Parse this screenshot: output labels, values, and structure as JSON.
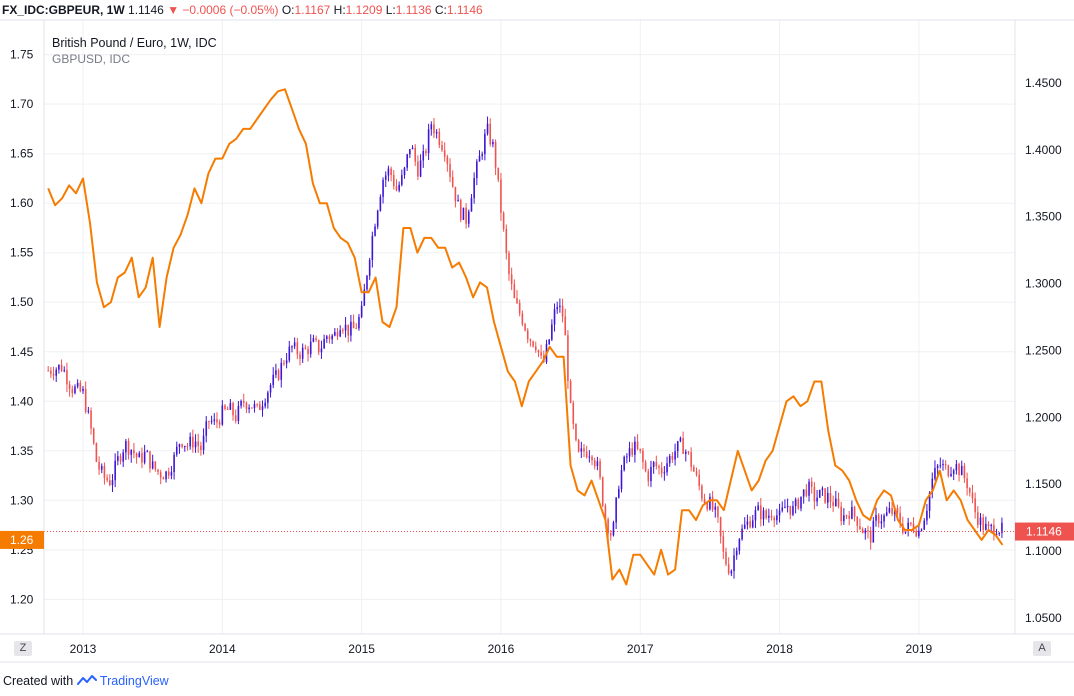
{
  "header": {
    "symbol": "FX_IDC:GBPEUR, 1W",
    "last": "1.1146",
    "change_arrow": "▼",
    "change": "−0.0006 (−0.05%)",
    "open_label": "O:",
    "open": "1.1167",
    "high_label": "H:",
    "high": "1.1209",
    "low_label": "L:",
    "low": "1.1136",
    "close_label": "C:",
    "close": "1.1146"
  },
  "legend": {
    "line1": "British Pound / Euro, 1W, IDC",
    "line2": "GBPUSD, IDC"
  },
  "footer": {
    "prefix": "Created with",
    "brand": "TradingView"
  },
  "buttons": {
    "left": "Z",
    "right": "A"
  },
  "colors": {
    "up": "#3d16d6",
    "down": "#ef5350",
    "gbpusd": "#f57c00",
    "grid": "#eef0f3",
    "price_line": "#ef5350"
  },
  "chart_data": {
    "type": "line",
    "left_axis": {
      "series": "GBPUSD",
      "ticks": [
        "1.20",
        "1.25",
        "1.30",
        "1.35",
        "1.40",
        "1.45",
        "1.50",
        "1.55",
        "1.60",
        "1.65",
        "1.70",
        "1.75"
      ],
      "ylim": [
        1.165,
        1.785
      ],
      "current_label": "1.26"
    },
    "right_axis": {
      "series": "GBPEUR",
      "ticks": [
        "1.0500",
        "1.1000",
        "1.1500",
        "1.2000",
        "1.2500",
        "1.3000",
        "1.3500",
        "1.4000",
        "1.4500"
      ],
      "ylim": [
        1.038,
        1.497
      ],
      "current_label": "1.1146"
    },
    "x_ticks": [
      "2013",
      "2014",
      "2015",
      "2016",
      "2017",
      "2018",
      "2019"
    ],
    "xlim": [
      2012.72,
      2019.69
    ],
    "series": [
      {
        "name": "GBPEUR, 1W",
        "chart_style": "candles",
        "points": [
          [
            2012.75,
            1.235
          ],
          [
            2012.85,
            1.238
          ],
          [
            2012.92,
            1.222
          ],
          [
            2013.0,
            1.218
          ],
          [
            2013.05,
            1.195
          ],
          [
            2013.1,
            1.165
          ],
          [
            2013.15,
            1.155
          ],
          [
            2013.2,
            1.152
          ],
          [
            2013.25,
            1.168
          ],
          [
            2013.3,
            1.18
          ],
          [
            2013.35,
            1.176
          ],
          [
            2013.4,
            1.168
          ],
          [
            2013.45,
            1.173
          ],
          [
            2013.5,
            1.163
          ],
          [
            2013.55,
            1.158
          ],
          [
            2013.6,
            1.158
          ],
          [
            2013.65,
            1.168
          ],
          [
            2013.7,
            1.184
          ],
          [
            2013.75,
            1.179
          ],
          [
            2013.8,
            1.183
          ],
          [
            2013.85,
            1.176
          ],
          [
            2013.9,
            1.198
          ],
          [
            2013.95,
            1.195
          ],
          [
            2014.0,
            1.203
          ],
          [
            2014.05,
            1.206
          ],
          [
            2014.1,
            1.2
          ],
          [
            2014.15,
            1.212
          ],
          [
            2014.2,
            1.21
          ],
          [
            2014.25,
            1.205
          ],
          [
            2014.3,
            1.215
          ],
          [
            2014.35,
            1.225
          ],
          [
            2014.4,
            1.232
          ],
          [
            2014.45,
            1.245
          ],
          [
            2014.5,
            1.252
          ],
          [
            2014.55,
            1.248
          ],
          [
            2014.6,
            1.25
          ],
          [
            2014.65,
            1.255
          ],
          [
            2014.7,
            1.251
          ],
          [
            2014.75,
            1.261
          ],
          [
            2014.8,
            1.26
          ],
          [
            2014.85,
            1.272
          ],
          [
            2014.9,
            1.265
          ],
          [
            2014.95,
            1.266
          ],
          [
            2015.0,
            1.278
          ],
          [
            2015.05,
            1.318
          ],
          [
            2015.1,
            1.35
          ],
          [
            2015.15,
            1.378
          ],
          [
            2015.2,
            1.385
          ],
          [
            2015.25,
            1.37
          ],
          [
            2015.3,
            1.38
          ],
          [
            2015.35,
            1.405
          ],
          [
            2015.4,
            1.385
          ],
          [
            2015.45,
            1.395
          ],
          [
            2015.5,
            1.42
          ],
          [
            2015.55,
            1.41
          ],
          [
            2015.6,
            1.4
          ],
          [
            2015.65,
            1.375
          ],
          [
            2015.7,
            1.355
          ],
          [
            2015.75,
            1.348
          ],
          [
            2015.8,
            1.375
          ],
          [
            2015.85,
            1.395
          ],
          [
            2015.9,
            1.415
          ],
          [
            2015.95,
            1.4
          ],
          [
            2016.0,
            1.355
          ],
          [
            2016.05,
            1.31
          ],
          [
            2016.1,
            1.285
          ],
          [
            2016.15,
            1.275
          ],
          [
            2016.2,
            1.26
          ],
          [
            2016.25,
            1.255
          ],
          [
            2016.3,
            1.238
          ],
          [
            2016.35,
            1.26
          ],
          [
            2016.4,
            1.285
          ],
          [
            2016.45,
            1.275
          ],
          [
            2016.5,
            1.205
          ],
          [
            2016.55,
            1.17
          ],
          [
            2016.6,
            1.175
          ],
          [
            2016.65,
            1.175
          ],
          [
            2016.7,
            1.16
          ],
          [
            2016.75,
            1.125
          ],
          [
            2016.8,
            1.11
          ],
          [
            2016.85,
            1.155
          ],
          [
            2016.9,
            1.17
          ],
          [
            2016.95,
            1.178
          ],
          [
            2017.0,
            1.172
          ],
          [
            2017.05,
            1.155
          ],
          [
            2017.1,
            1.165
          ],
          [
            2017.15,
            1.16
          ],
          [
            2017.2,
            1.168
          ],
          [
            2017.25,
            1.175
          ],
          [
            2017.3,
            1.18
          ],
          [
            2017.35,
            1.17
          ],
          [
            2017.4,
            1.155
          ],
          [
            2017.45,
            1.14
          ],
          [
            2017.5,
            1.135
          ],
          [
            2017.55,
            1.125
          ],
          [
            2017.6,
            1.095
          ],
          [
            2017.65,
            1.085
          ],
          [
            2017.7,
            1.11
          ],
          [
            2017.75,
            1.118
          ],
          [
            2017.8,
            1.125
          ],
          [
            2017.85,
            1.13
          ],
          [
            2017.9,
            1.125
          ],
          [
            2017.95,
            1.13
          ],
          [
            2018.0,
            1.125
          ],
          [
            2018.05,
            1.135
          ],
          [
            2018.1,
            1.13
          ],
          [
            2018.15,
            1.14
          ],
          [
            2018.2,
            1.148
          ],
          [
            2018.25,
            1.14
          ],
          [
            2018.3,
            1.142
          ],
          [
            2018.35,
            1.14
          ],
          [
            2018.4,
            1.135
          ],
          [
            2018.45,
            1.125
          ],
          [
            2018.5,
            1.13
          ],
          [
            2018.55,
            1.125
          ],
          [
            2018.6,
            1.115
          ],
          [
            2018.65,
            1.11
          ],
          [
            2018.7,
            1.125
          ],
          [
            2018.75,
            1.125
          ],
          [
            2018.8,
            1.13
          ],
          [
            2018.85,
            1.125
          ],
          [
            2018.9,
            1.115
          ],
          [
            2018.95,
            1.12
          ],
          [
            2019.0,
            1.115
          ],
          [
            2019.05,
            1.13
          ],
          [
            2019.1,
            1.155
          ],
          [
            2019.15,
            1.165
          ],
          [
            2019.2,
            1.16
          ],
          [
            2019.25,
            1.165
          ],
          [
            2019.3,
            1.16
          ],
          [
            2019.35,
            1.15
          ],
          [
            2019.4,
            1.13
          ],
          [
            2019.45,
            1.12
          ],
          [
            2019.5,
            1.115
          ],
          [
            2019.55,
            1.119
          ],
          [
            2019.6,
            1.115
          ]
        ]
      },
      {
        "name": "GBPUSD, IDC",
        "chart_style": "line",
        "points": [
          [
            2012.75,
            1.615
          ],
          [
            2012.8,
            1.598
          ],
          [
            2012.85,
            1.605
          ],
          [
            2012.9,
            1.618
          ],
          [
            2012.95,
            1.61
          ],
          [
            2013.0,
            1.625
          ],
          [
            2013.05,
            1.58
          ],
          [
            2013.1,
            1.52
          ],
          [
            2013.15,
            1.495
          ],
          [
            2013.2,
            1.5
          ],
          [
            2013.25,
            1.525
          ],
          [
            2013.3,
            1.53
          ],
          [
            2013.35,
            1.545
          ],
          [
            2013.4,
            1.505
          ],
          [
            2013.45,
            1.515
          ],
          [
            2013.5,
            1.545
          ],
          [
            2013.55,
            1.475
          ],
          [
            2013.6,
            1.525
          ],
          [
            2013.65,
            1.555
          ],
          [
            2013.7,
            1.568
          ],
          [
            2013.75,
            1.588
          ],
          [
            2013.8,
            1.615
          ],
          [
            2013.85,
            1.6
          ],
          [
            2013.9,
            1.63
          ],
          [
            2013.95,
            1.645
          ],
          [
            2014.0,
            1.645
          ],
          [
            2014.05,
            1.66
          ],
          [
            2014.1,
            1.665
          ],
          [
            2014.15,
            1.675
          ],
          [
            2014.2,
            1.675
          ],
          [
            2014.25,
            1.685
          ],
          [
            2014.3,
            1.695
          ],
          [
            2014.35,
            1.705
          ],
          [
            2014.4,
            1.713
          ],
          [
            2014.45,
            1.715
          ],
          [
            2014.5,
            1.695
          ],
          [
            2014.55,
            1.675
          ],
          [
            2014.6,
            1.66
          ],
          [
            2014.65,
            1.62
          ],
          [
            2014.7,
            1.6
          ],
          [
            2014.75,
            1.6
          ],
          [
            2014.8,
            1.575
          ],
          [
            2014.85,
            1.565
          ],
          [
            2014.9,
            1.56
          ],
          [
            2014.95,
            1.545
          ],
          [
            2015.0,
            1.51
          ],
          [
            2015.05,
            1.51
          ],
          [
            2015.1,
            1.525
          ],
          [
            2015.15,
            1.48
          ],
          [
            2015.2,
            1.475
          ],
          [
            2015.25,
            1.495
          ],
          [
            2015.3,
            1.575
          ],
          [
            2015.35,
            1.575
          ],
          [
            2015.4,
            1.55
          ],
          [
            2015.45,
            1.565
          ],
          [
            2015.5,
            1.565
          ],
          [
            2015.55,
            1.555
          ],
          [
            2015.6,
            1.555
          ],
          [
            2015.65,
            1.535
          ],
          [
            2015.7,
            1.54
          ],
          [
            2015.75,
            1.525
          ],
          [
            2015.8,
            1.505
          ],
          [
            2015.85,
            1.52
          ],
          [
            2015.9,
            1.515
          ],
          [
            2015.95,
            1.48
          ],
          [
            2016.0,
            1.455
          ],
          [
            2016.05,
            1.43
          ],
          [
            2016.1,
            1.42
          ],
          [
            2016.15,
            1.395
          ],
          [
            2016.2,
            1.42
          ],
          [
            2016.25,
            1.43
          ],
          [
            2016.3,
            1.44
          ],
          [
            2016.35,
            1.455
          ],
          [
            2016.4,
            1.445
          ],
          [
            2016.45,
            1.445
          ],
          [
            2016.5,
            1.335
          ],
          [
            2016.55,
            1.31
          ],
          [
            2016.6,
            1.305
          ],
          [
            2016.65,
            1.32
          ],
          [
            2016.7,
            1.3
          ],
          [
            2016.75,
            1.28
          ],
          [
            2016.8,
            1.22
          ],
          [
            2016.85,
            1.23
          ],
          [
            2016.9,
            1.215
          ],
          [
            2016.95,
            1.245
          ],
          [
            2017.0,
            1.245
          ],
          [
            2017.05,
            1.235
          ],
          [
            2017.1,
            1.225
          ],
          [
            2017.15,
            1.25
          ],
          [
            2017.2,
            1.225
          ],
          [
            2017.25,
            1.23
          ],
          [
            2017.3,
            1.29
          ],
          [
            2017.35,
            1.29
          ],
          [
            2017.4,
            1.28
          ],
          [
            2017.45,
            1.295
          ],
          [
            2017.5,
            1.3
          ],
          [
            2017.55,
            1.3
          ],
          [
            2017.6,
            1.29
          ],
          [
            2017.65,
            1.32
          ],
          [
            2017.7,
            1.35
          ],
          [
            2017.75,
            1.33
          ],
          [
            2017.8,
            1.31
          ],
          [
            2017.85,
            1.32
          ],
          [
            2017.9,
            1.34
          ],
          [
            2017.95,
            1.35
          ],
          [
            2018.0,
            1.375
          ],
          [
            2018.05,
            1.4
          ],
          [
            2018.1,
            1.405
          ],
          [
            2018.15,
            1.395
          ],
          [
            2018.2,
            1.4
          ],
          [
            2018.25,
            1.42
          ],
          [
            2018.3,
            1.42
          ],
          [
            2018.35,
            1.37
          ],
          [
            2018.4,
            1.335
          ],
          [
            2018.45,
            1.33
          ],
          [
            2018.5,
            1.32
          ],
          [
            2018.55,
            1.3
          ],
          [
            2018.6,
            1.285
          ],
          [
            2018.65,
            1.28
          ],
          [
            2018.7,
            1.3
          ],
          [
            2018.75,
            1.31
          ],
          [
            2018.8,
            1.305
          ],
          [
            2018.85,
            1.28
          ],
          [
            2018.9,
            1.27
          ],
          [
            2018.95,
            1.27
          ],
          [
            2019.0,
            1.275
          ],
          [
            2019.05,
            1.3
          ],
          [
            2019.1,
            1.31
          ],
          [
            2019.15,
            1.33
          ],
          [
            2019.2,
            1.3
          ],
          [
            2019.25,
            1.31
          ],
          [
            2019.3,
            1.3
          ],
          [
            2019.35,
            1.28
          ],
          [
            2019.4,
            1.27
          ],
          [
            2019.45,
            1.26
          ],
          [
            2019.5,
            1.27
          ],
          [
            2019.55,
            1.265
          ],
          [
            2019.6,
            1.255
          ]
        ]
      }
    ]
  }
}
